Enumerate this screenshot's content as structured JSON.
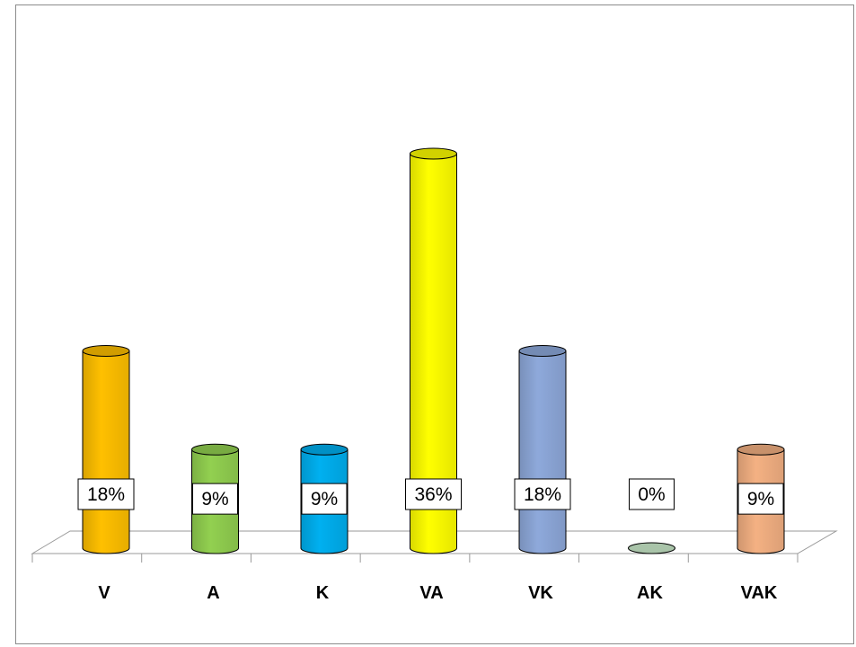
{
  "chart_data": {
    "type": "bar",
    "style": "3d-cylinder",
    "title": "",
    "xlabel": "",
    "ylabel": "",
    "categories": [
      "V",
      "A",
      "K",
      "VA",
      "VK",
      "AK",
      "VAK"
    ],
    "values": [
      18,
      9,
      9,
      36,
      18,
      0,
      9
    ],
    "value_labels": [
      "18%",
      "9%",
      "9%",
      "36%",
      "18%",
      "0%",
      "9%"
    ],
    "colors": [
      "#FFC000",
      "#92D050",
      "#00B0F0",
      "#FFFF00",
      "#8EA9DB",
      "#A9C4A9",
      "#F4B183"
    ],
    "ylim": [
      0,
      40
    ],
    "grid": false,
    "legend": "none"
  }
}
